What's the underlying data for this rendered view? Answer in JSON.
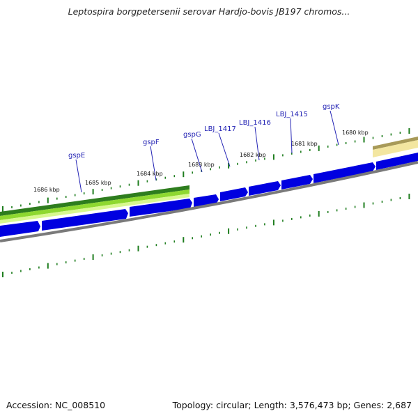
{
  "header": {
    "title": "Leptospira borgpetersenii serovar Hardjo-bovis JB197 chromos..."
  },
  "footer": {
    "accession": "Accession: NC_008510",
    "summary": "Topology: circular; Length: 3,576,473 bp; Genes: 2,687"
  },
  "map": {
    "colors": {
      "gene_arrow": "#0000e0",
      "backbone": "#7a7a7a",
      "tick": "#1e7d1e",
      "gene_label": "#2323b4",
      "feature_green_dark": "#2e7d1e",
      "feature_green_light": "#b8f040",
      "feature_tan": "#c8b870"
    },
    "kbp_labels": [
      {
        "text": "1686 kbp",
        "kbp": 1686
      },
      {
        "text": "1685 kbp",
        "kbp": 1685
      },
      {
        "text": "1684 kbp",
        "kbp": 1684
      },
      {
        "text": "1683 kbp",
        "kbp": 1683
      },
      {
        "text": "1682 kbp",
        "kbp": 1682
      },
      {
        "text": "1681 kbp",
        "kbp": 1681
      },
      {
        "text": "1680 kbp",
        "kbp": 1680
      }
    ],
    "gene_labels": [
      {
        "text": "gspE"
      },
      {
        "text": "gspF"
      },
      {
        "text": "gspG"
      },
      {
        "text": "LBJ_1417"
      },
      {
        "text": "LBJ_1416"
      },
      {
        "text": "LBJ_1415"
      },
      {
        "text": "gspK"
      }
    ]
  }
}
